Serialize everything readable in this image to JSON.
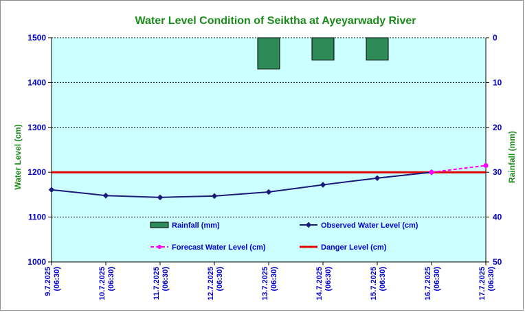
{
  "chart_data": {
    "type": "line",
    "title": "Water Level Condition of Seiktha at Ayeyarwady River",
    "ylabel_left": "Water Level (cm)",
    "ylabel_right": "Rainfall (mm)",
    "x": [
      "9.7.2025",
      "10.7.2025",
      "11.7.2025",
      "12.7.2025",
      "13.7.2025",
      "14.7.2025",
      "15.7.2025",
      "16.7.2025",
      "17.7.2025"
    ],
    "x_time": "(06:30)",
    "ylim_left": [
      1000,
      1500
    ],
    "yticks_left": [
      "1000",
      "1100",
      "1200",
      "1300",
      "1400",
      "1500"
    ],
    "ylim_right": [
      50,
      0
    ],
    "yticks_right": [
      "0",
      "10",
      "20",
      "30",
      "40",
      "50"
    ],
    "grid": true,
    "series": [
      {
        "name": "Rainfall (mm)",
        "type": "bar",
        "axis": "right",
        "color": "#2e8b57",
        "values": [
          0,
          0,
          0,
          0,
          7,
          5,
          5,
          0,
          0
        ]
      },
      {
        "name": "Observed Water Level (cm)",
        "type": "line",
        "color": "#1a1a7a",
        "values": [
          1161,
          1148,
          1144,
          1147,
          1156,
          1172,
          1187,
          1200,
          null
        ]
      },
      {
        "name": "Forecast Water Level (cm)",
        "type": "line",
        "style": "dashed",
        "color": "#ff00ff",
        "values": [
          null,
          null,
          null,
          null,
          null,
          null,
          null,
          1200,
          1215
        ]
      },
      {
        "name": "Danger Level (cm)",
        "type": "line",
        "color": "#e00000",
        "values": [
          1200,
          1200,
          1200,
          1200,
          1200,
          1200,
          1200,
          1200,
          1200
        ]
      }
    ],
    "legend": [
      {
        "label": "Rainfall (mm)",
        "key": "rainfall"
      },
      {
        "label": "Observed Water Level (cm)",
        "key": "observed"
      },
      {
        "label": "Forecast Water Level (cm)",
        "key": "forecast"
      },
      {
        "label": "Danger Level (cm)",
        "key": "danger"
      }
    ],
    "plot_background": "#ccffff"
  }
}
